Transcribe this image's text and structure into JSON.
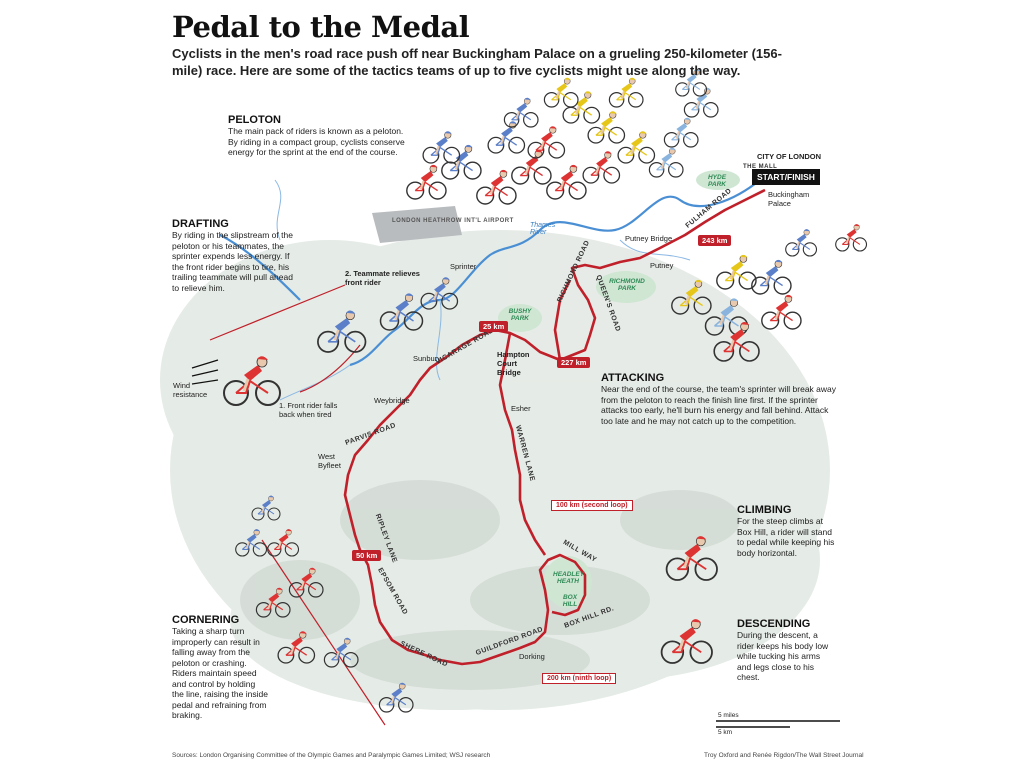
{
  "title": "Pedal to the Medal",
  "intro": "Cyclists in the men's road race push off near Buckingham Palace on a grueling 250-kilometer (156-mile) race. Here are some of the tactics teams of up to five cyclists might use along the way.",
  "sections": {
    "peloton": {
      "heading": "PELOTON",
      "text": "The main pack of riders is known as a peloton. By riding in a compact group, cyclists conserve energy for the sprint at the end of the course."
    },
    "drafting": {
      "heading": "DRAFTING",
      "text": "By riding in the slipstream of the peloton or his teammates, the sprinter expends less energy. If the front rider begins to tire, his trailing teammate will pull ahead to relieve him."
    },
    "attacking": {
      "heading": "ATTACKING",
      "text": "Near the end of the course, the team's sprinter will break away from the peloton to reach the finish line first. If the sprinter attacks too early, he'll burn his energy and fall behind. Attack too late and he may not catch up to the competition."
    },
    "climbing": {
      "heading": "CLIMBING",
      "text": "For the steep climbs at Box Hill, a rider will stand to pedal while keeping his body horizontal."
    },
    "descending": {
      "heading": "DESCENDING",
      "text": "During the descent, a rider keeps his body low while tucking his arms and legs close to his chest."
    },
    "cornering": {
      "heading": "CORNERING",
      "text": "Taking a sharp turn improperly can result in falling away from the peloton or crashing. Riders maintain speed and control by holding the line, raising the inside pedal and refraining from braking."
    }
  },
  "drafting_labels": {
    "teammate": "2. Teammate relieves front rider",
    "sprinter": "Sprinter",
    "front_rider": "1. Front rider falls back when tired",
    "wind": "Wind resistance"
  },
  "places": {
    "city_of_london": "CITY OF LONDON",
    "the_mall": "THE MALL",
    "start_finish": "START/FINISH",
    "buckingham": "Buckingham Palace",
    "heathrow": "LONDON HEATHROW INT'L AIRPORT",
    "thames": "Thames River",
    "putney_bridge": "Putney Bridge",
    "putney": "Putney",
    "hampton": "Hampton Court Bridge",
    "sunbury": "Sunbury",
    "weybridge": "Weybridge",
    "west_byfleet": "West Byfleet",
    "esher": "Esher",
    "dorking": "Dorking"
  },
  "parks": {
    "hyde": "HYDE PARK",
    "richmond": "RICHMOND PARK",
    "bushy": "BUSHY PARK",
    "headley": "HEADLEY HEATH",
    "box_hill": "BOX HILL"
  },
  "roads": {
    "fulham": "FULHAM ROAD",
    "richmond": "RICHMOND ROAD",
    "queens": "QUEEN'S ROAD",
    "vicarage": "VICARAGE ROAD",
    "warren": "WARREN LANE",
    "parvis": "PARVIS ROAD",
    "ripley": "RIPLEY LANE",
    "epsom": "EPSOM ROAD",
    "shere": "SHERE ROAD",
    "guildford": "GUILDFORD ROAD",
    "mill_way": "MILL WAY",
    "box_hill_rd": "BOX HILL RD."
  },
  "distances": {
    "km243": "243 km",
    "km25": "25 km",
    "km227": "227 km",
    "km50": "50 km",
    "km100": "100 km (second loop)",
    "km200": "200 km (ninth loop)"
  },
  "scale": {
    "miles": "5 miles",
    "km": "5 km"
  },
  "sources": "Sources: London Organising Committee of the Olympic Games and Paralympic Games Limited; WSJ research",
  "credit": "Troy Oxford and Renée Rigdon/The Wall Street Journal",
  "colors": {
    "route": "#c0202a",
    "river": "#4a8fd4",
    "park": "#2f8a55",
    "terrain": "#e6ebe6"
  }
}
